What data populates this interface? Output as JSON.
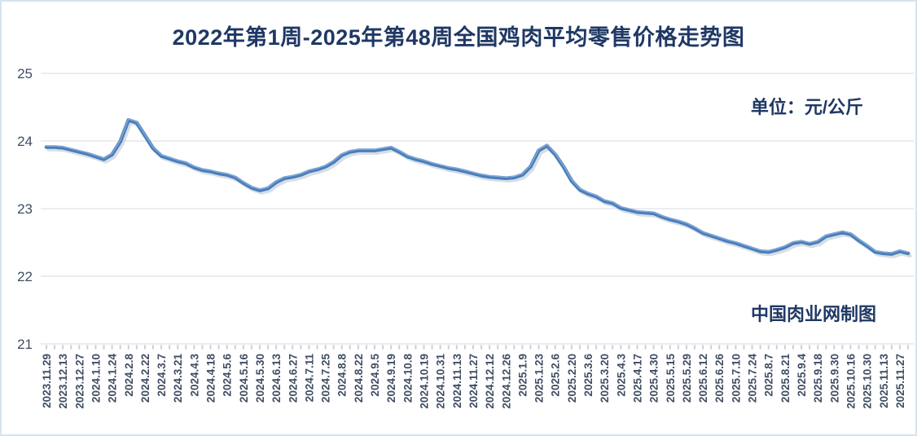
{
  "chart_data": {
    "type": "line",
    "title": "2022年第1周-2025年第48周全国鸡肉平均零售价格走势图",
    "unit_label": "单位：元/公斤",
    "credit_label": "中国肉业网制图",
    "ylabel": "",
    "ylim": [
      21,
      25
    ],
    "y_ticks": [
      25,
      24,
      23,
      22,
      21
    ],
    "grid": true,
    "legend_position": "none",
    "line_color": "#4a7ebc",
    "line_shadow_color": "#b7c3d0",
    "grid_color": "#dde2e8",
    "tick_color": "#c6cfd9",
    "axis_label_color": "#3f4d63",
    "title_color": "#1f3864",
    "points_per_label": 2,
    "x_tick_labels": [
      "2023.11.29",
      "2023.12.13",
      "2023.12.27",
      "2024.1.10",
      "2024.1.24",
      "2024.2.8",
      "2024.2.22",
      "2024.3.7",
      "2024.3.21",
      "2024.4.3",
      "2024.4.18",
      "2024.5.6",
      "2024.5.16",
      "2024.5.30",
      "2024.6.13",
      "2024.6.27",
      "2024.7.11",
      "2024.7.25",
      "2024.8.8",
      "2024.8.22",
      "2024.9.5",
      "2024.9.19",
      "2024.10.8",
      "2024.10.19",
      "2024.10.31",
      "2024.11.13",
      "2024.11.27",
      "2024.12.12",
      "2024.12.26",
      "2025.1.9",
      "2025.1.23",
      "2025.2.6",
      "2025.2.20",
      "2025.3.6",
      "2025.3.20",
      "2025.4.3",
      "2025.4.17",
      "2025.4.30",
      "2025.5.15",
      "2025.5.29",
      "2025.6.12",
      "2025.6.26",
      "2025.7.10",
      "2025.7.24",
      "2025.8.7",
      "2025.8.21",
      "2025.9.4",
      "2025.9.18",
      "2025.9.30",
      "2025.10.16",
      "2025.10.30",
      "2025.11.13",
      "2025.11.27"
    ],
    "values": [
      23.91,
      23.91,
      23.9,
      23.87,
      23.84,
      23.81,
      23.77,
      23.73,
      23.8,
      23.99,
      24.31,
      24.27,
      24.08,
      23.89,
      23.78,
      23.74,
      23.7,
      23.67,
      23.61,
      23.57,
      23.55,
      23.52,
      23.5,
      23.46,
      23.38,
      23.31,
      23.27,
      23.3,
      23.39,
      23.45,
      23.47,
      23.5,
      23.55,
      23.58,
      23.62,
      23.69,
      23.79,
      23.84,
      23.86,
      23.86,
      23.86,
      23.88,
      23.9,
      23.84,
      23.77,
      23.73,
      23.7,
      23.66,
      23.63,
      23.6,
      23.58,
      23.55,
      23.52,
      23.49,
      23.47,
      23.46,
      23.45,
      23.46,
      23.5,
      23.62,
      23.86,
      23.93,
      23.8,
      23.62,
      23.41,
      23.28,
      23.22,
      23.18,
      23.11,
      23.08,
      23.01,
      22.98,
      22.95,
      22.94,
      22.93,
      22.88,
      22.84,
      22.81,
      22.77,
      22.71,
      22.64,
      22.6,
      22.56,
      22.52,
      22.49,
      22.45,
      22.41,
      22.37,
      22.36,
      22.39,
      22.43,
      22.49,
      22.51,
      22.48,
      22.51,
      22.59,
      22.62,
      22.65,
      22.62,
      22.53,
      22.45,
      22.36,
      22.34,
      22.33,
      22.37,
      22.34
    ]
  }
}
